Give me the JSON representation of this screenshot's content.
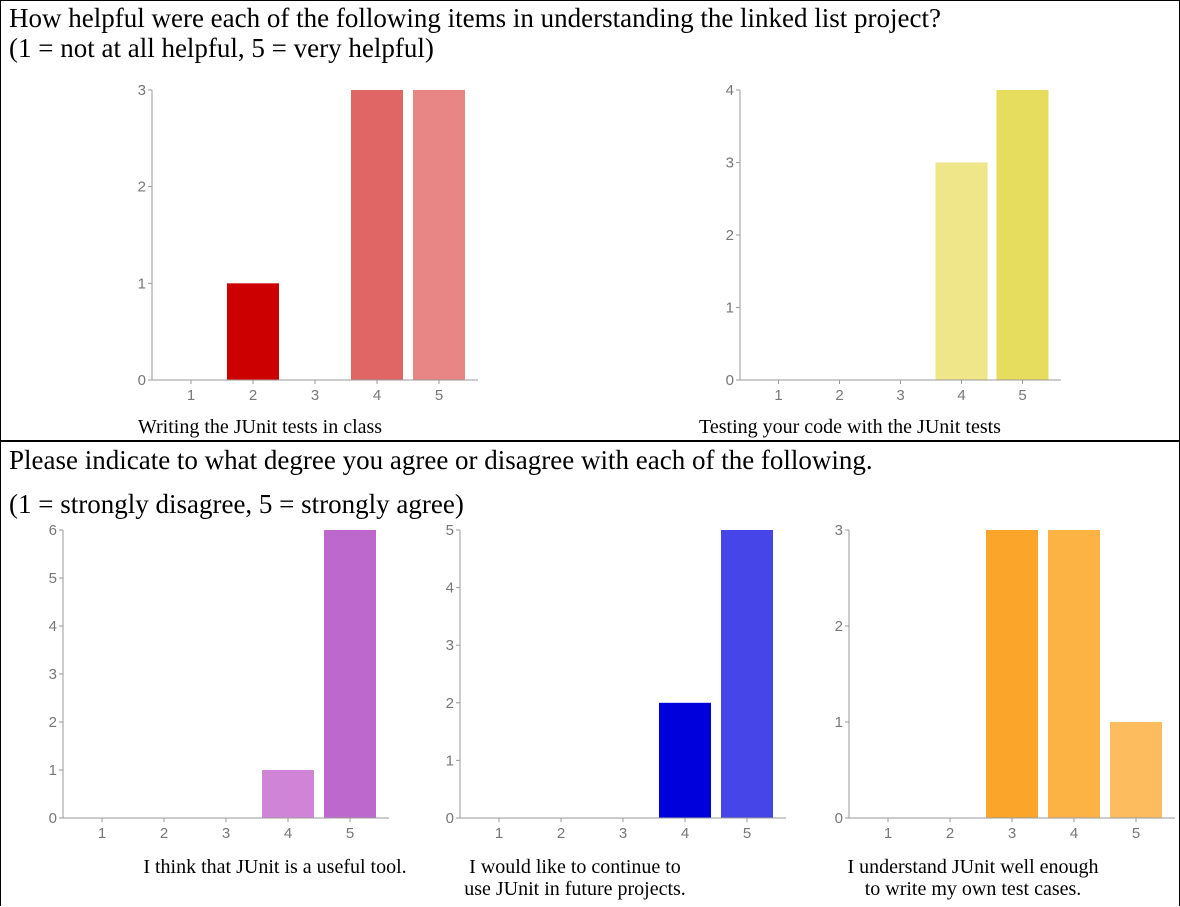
{
  "section1": {
    "question": "How helpful were each of the following items in understanding the linked list project?",
    "scale": "(1 = not at all helpful, 5 = very helpful)"
  },
  "section2": {
    "question": "Please indicate to what degree you agree or disagree with each of the following.",
    "scale": "(1 = strongly disagree, 5 = strongly agree)"
  },
  "chart_data": [
    {
      "type": "bar",
      "categories": [
        "1",
        "2",
        "3",
        "4",
        "5"
      ],
      "values": [
        0,
        1,
        0,
        3,
        3
      ],
      "ylim": [
        0,
        3
      ],
      "yticks": [
        0,
        1,
        2,
        3
      ],
      "colors": [
        "#e06a6a",
        "#cc0000",
        "#e06a6a",
        "#e06666",
        "#e88585"
      ],
      "xlabel": "Writing the JUnit tests in class",
      "grid": false
    },
    {
      "type": "bar",
      "categories": [
        "1",
        "2",
        "3",
        "4",
        "5"
      ],
      "values": [
        0,
        0,
        0,
        3,
        4
      ],
      "ylim": [
        0,
        4
      ],
      "yticks": [
        0,
        1,
        2,
        3,
        4
      ],
      "colors": [
        "#ece27f",
        "#ece27f",
        "#ece27f",
        "#efe68a",
        "#e6dc5e"
      ],
      "xlabel": "Testing your code with the JUnit tests",
      "grid": false
    },
    {
      "type": "bar",
      "categories": [
        "1",
        "2",
        "3",
        "4",
        "5"
      ],
      "values": [
        0,
        0,
        0,
        1,
        6
      ],
      "ylim": [
        0,
        6
      ],
      "yticks": [
        0,
        1,
        2,
        3,
        4,
        5,
        6
      ],
      "colors": [
        "#c26ccf",
        "#c26ccf",
        "#c26ccf",
        "#cf84d8",
        "#bd68cc"
      ],
      "xlabel": "I think that JUnit is a useful tool.",
      "grid": false
    },
    {
      "type": "bar",
      "categories": [
        "1",
        "2",
        "3",
        "4",
        "5"
      ],
      "values": [
        0,
        0,
        0,
        2,
        5
      ],
      "ylim": [
        0,
        5
      ],
      "yticks": [
        0,
        1,
        2,
        3,
        4,
        5
      ],
      "colors": [
        "#4444e6",
        "#4444e6",
        "#4444e6",
        "#0000dd",
        "#4545e8"
      ],
      "xlabel": "I would like to continue to use JUnit in future projects.",
      "grid": false
    },
    {
      "type": "bar",
      "categories": [
        "1",
        "2",
        "3",
        "4",
        "5"
      ],
      "values": [
        0,
        0,
        3,
        3,
        1
      ],
      "ylim": [
        0,
        3
      ],
      "yticks": [
        0,
        1,
        2,
        3
      ],
      "colors": [
        "#fba52a",
        "#fba52a",
        "#fba52a",
        "#fdb244",
        "#fdbd5f"
      ],
      "xlabel": "I understand JUnit well enough to write my own test cases.",
      "grid": false
    }
  ]
}
